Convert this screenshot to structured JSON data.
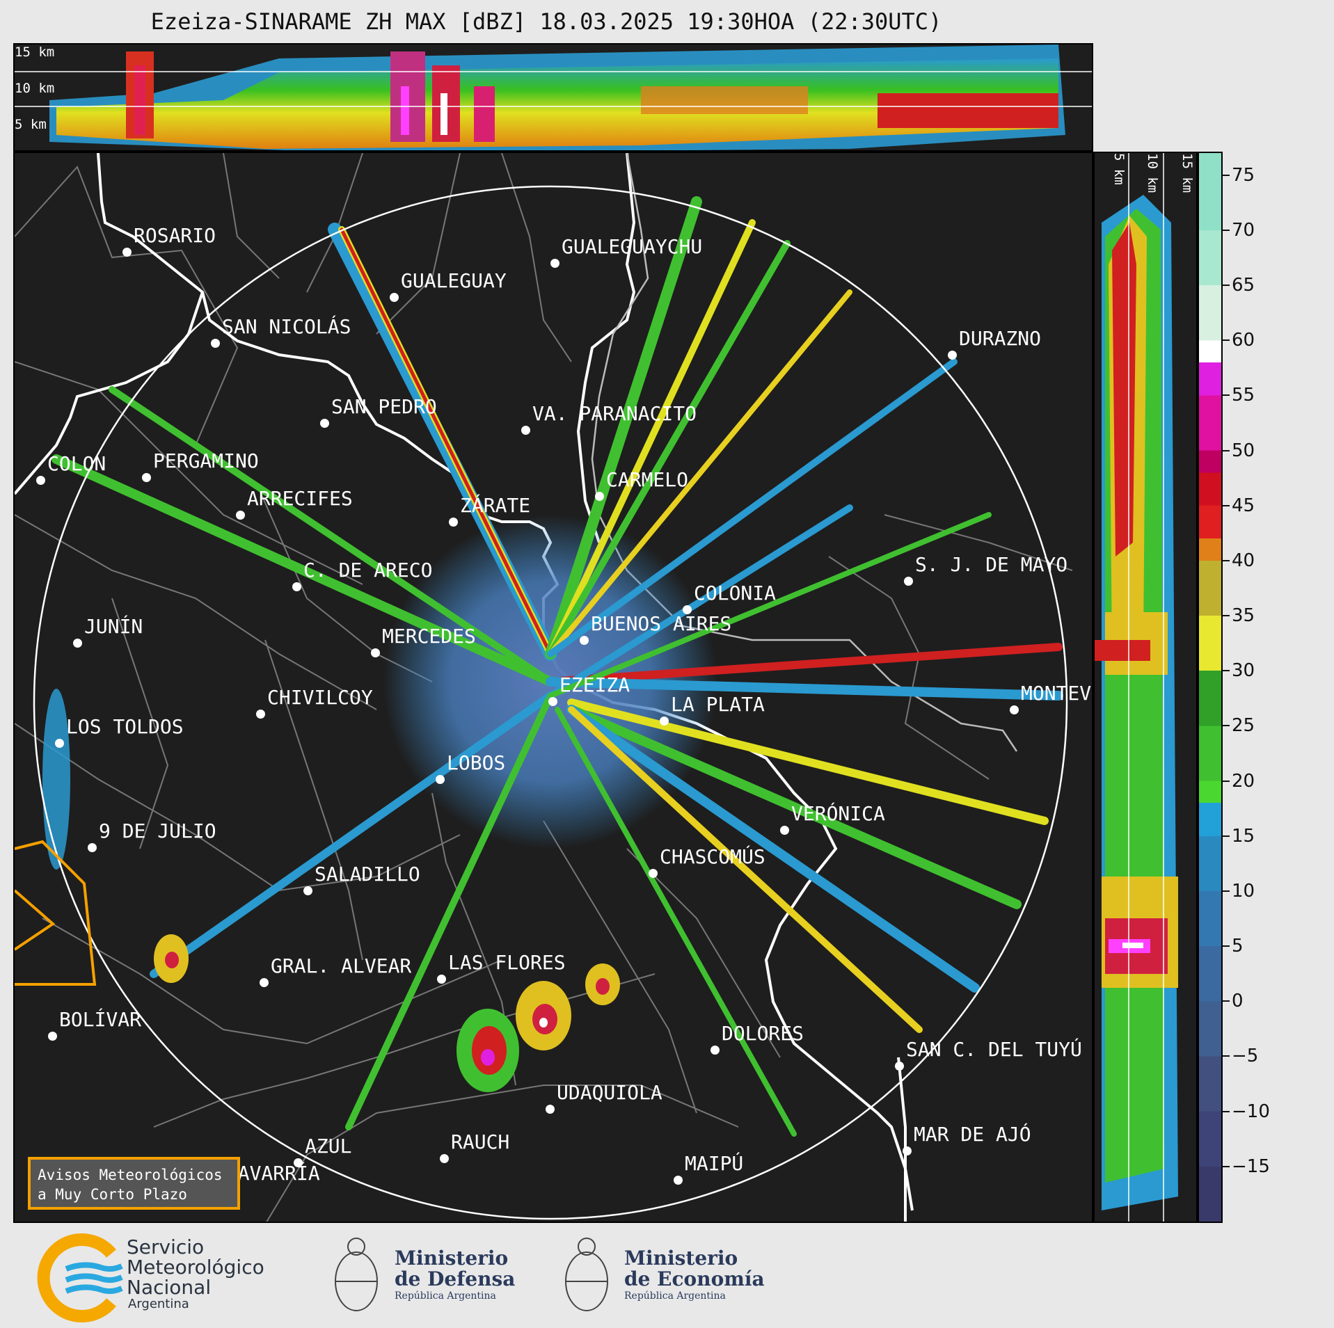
{
  "title": "Ezeiza-SINARAME ZH MAX [dBZ] 18.03.2025 19:30HOA (22:30UTC)",
  "top_profile": {
    "height_labels": [
      "15 km",
      "10 km",
      "5 km"
    ]
  },
  "side_profile": {
    "height_labels": [
      "5 km",
      "10 km",
      "15 km"
    ]
  },
  "colorbar": {
    "unit": "dBZ",
    "ticks": [
      "75",
      "70",
      "65",
      "60",
      "55",
      "50",
      "45",
      "40",
      "35",
      "30",
      "25",
      "20",
      "15",
      "10",
      "5",
      "0",
      "−5",
      "−10",
      "−15"
    ]
  },
  "cities": [
    {
      "name": "ROSARIO"
    },
    {
      "name": "GUALEGUAYCHU"
    },
    {
      "name": "GUALEGUAY"
    },
    {
      "name": "SAN NICOLÁS"
    },
    {
      "name": "DURAZNO"
    },
    {
      "name": "SAN PEDRO"
    },
    {
      "name": "VA. PARANACITO"
    },
    {
      "name": "COLON"
    },
    {
      "name": "PERGAMINO"
    },
    {
      "name": "CARMELO"
    },
    {
      "name": "ARRECIFES"
    },
    {
      "name": "ZÁRATE"
    },
    {
      "name": "S. J. DE MAYO"
    },
    {
      "name": "C. DE ARECO"
    },
    {
      "name": "COLONIA"
    },
    {
      "name": "JUNÍN"
    },
    {
      "name": "BUENOS AIRES"
    },
    {
      "name": "MERCEDES"
    },
    {
      "name": "EZEIZA"
    },
    {
      "name": "MONTEVIDEO"
    },
    {
      "name": "CHIVILCOY"
    },
    {
      "name": "LA PLATA"
    },
    {
      "name": "LOS TOLDOS"
    },
    {
      "name": "LOBOS"
    },
    {
      "name": "VERÓNICA"
    },
    {
      "name": "9 DE JULIO"
    },
    {
      "name": "CHASCOMÚS"
    },
    {
      "name": "SALADILLO"
    },
    {
      "name": "GRAL. ALVEAR"
    },
    {
      "name": "LAS FLORES"
    },
    {
      "name": "BOLÍVAR"
    },
    {
      "name": "DOLORES"
    },
    {
      "name": "SAN C. DEL TUYÚ"
    },
    {
      "name": "UDAQUIOLA"
    },
    {
      "name": "MAR DE AJÓ"
    },
    {
      "name": "AZUL"
    },
    {
      "name": "RAUCH"
    },
    {
      "name": "OLAVARRÍA"
    },
    {
      "name": "MAIPÚ"
    }
  ],
  "notice": {
    "line1": "Avisos Meteorológicos",
    "line2": "a Muy Corto Plazo"
  },
  "logos": {
    "smn": [
      "Servicio",
      "Meteorológico",
      "Nacional",
      "Argentina"
    ],
    "defensa": [
      "Ministerio",
      "de Defensa",
      "República Argentina"
    ],
    "economia": [
      "Ministerio",
      "de Economía",
      "República Argentina"
    ]
  },
  "colors": {
    "accent_orange": "#f5a000",
    "panel_bg": "#1e1e1e",
    "smn_blue": "#2aa8e0",
    "smn_orange": "#f5a800"
  }
}
